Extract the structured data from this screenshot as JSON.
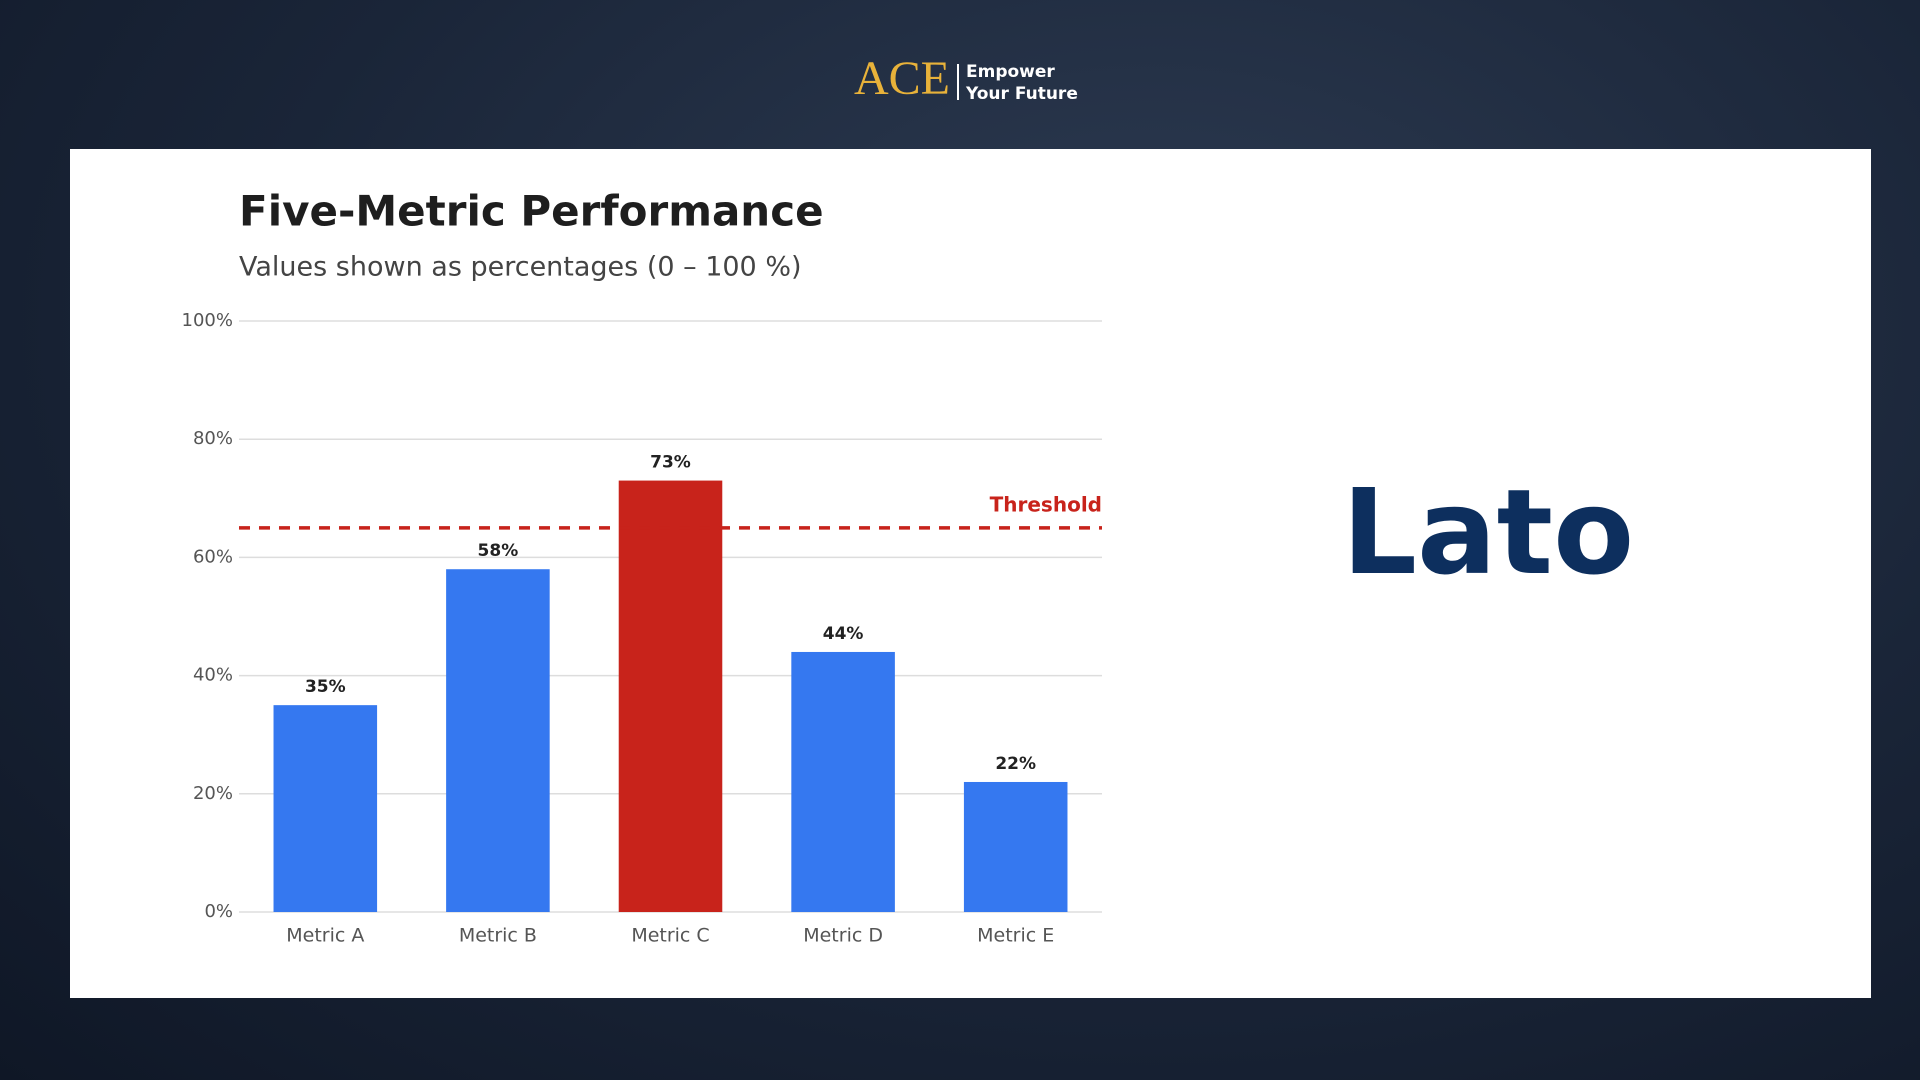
{
  "header": {
    "logo": "ACE",
    "tagline": [
      "Empower",
      "Your Future"
    ]
  },
  "side_text": "Lato",
  "chart_data": {
    "type": "bar",
    "title": "Five-Metric Performance",
    "subtitle": "Values shown as percentages (0 – 100 %)",
    "categories": [
      "Metric A",
      "Metric B",
      "Metric C",
      "Metric D",
      "Metric E"
    ],
    "values": [
      35,
      58,
      73,
      44,
      22
    ],
    "value_labels": [
      "35%",
      "58%",
      "73%",
      "44%",
      "22%"
    ],
    "colors": [
      "#3578f0",
      "#3578f0",
      "#c8231b",
      "#3578f0",
      "#3578f0"
    ],
    "ylim": [
      0,
      100
    ],
    "yticks": [
      {
        "value": 0,
        "label": "0%"
      },
      {
        "value": 20,
        "label": "20%"
      },
      {
        "value": 40,
        "label": "40%"
      },
      {
        "value": 60,
        "label": "60%"
      },
      {
        "value": 80,
        "label": "80%"
      },
      {
        "value": 100,
        "label": "100%"
      }
    ],
    "grid": true,
    "threshold": {
      "value": 65,
      "label": "Threshold",
      "color": "#c8231b"
    }
  }
}
